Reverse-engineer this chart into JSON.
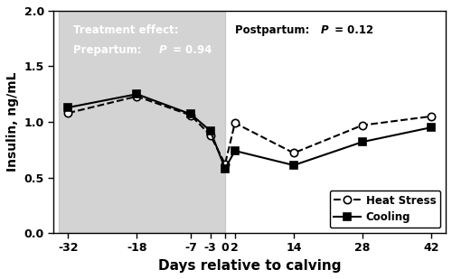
{
  "x_values": [
    -32,
    -18,
    -7,
    -3,
    0,
    2,
    14,
    28,
    42
  ],
  "heat_stress": [
    1.08,
    1.23,
    1.06,
    0.88,
    0.62,
    0.99,
    0.72,
    0.97,
    1.05
  ],
  "cooling": [
    1.13,
    1.25,
    1.07,
    0.92,
    0.58,
    0.74,
    0.61,
    0.82,
    0.95
  ],
  "x_ticks": [
    -32,
    -18,
    -7,
    -3,
    0,
    2,
    14,
    28,
    42
  ],
  "x_tick_labels": [
    "-32",
    "-18",
    "-7",
    "-3",
    "0",
    "2",
    "14",
    "28",
    "42"
  ],
  "ylim": [
    0.0,
    2.0
  ],
  "yticks": [
    0.0,
    0.5,
    1.0,
    1.5,
    2.0
  ],
  "ylabel": "Insulin, ng/mL",
  "xlabel": "Days relative to calving",
  "shaded_color": "#b0b0b0",
  "shaded_alpha": 0.55,
  "legend_heat_stress": "Heat Stress",
  "legend_cooling": "Cooling",
  "line_color": "black",
  "dashed_style": "--",
  "solid_style": "-",
  "marker_open": "o",
  "marker_solid": "s",
  "marker_size": 6,
  "linewidth": 1.5,
  "background_color": "#ffffff",
  "text_color_prepartum": "#ffffff",
  "text_color_postpartum": "#000000"
}
